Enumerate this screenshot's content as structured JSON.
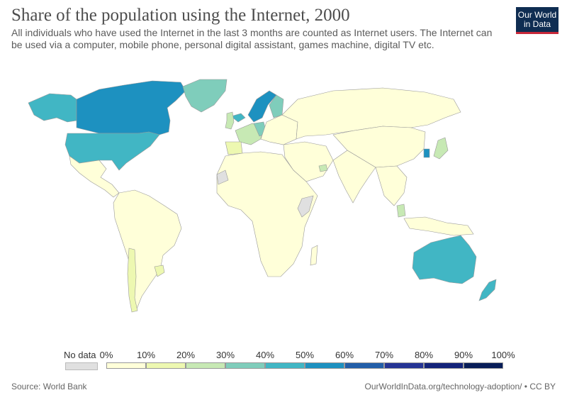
{
  "header": {
    "title": "Share of the population using the Internet, 2000",
    "subtitle": "All individuals who have used the Internet in the last 3 months are counted as Internet users. The Internet can be used via a computer, mobile phone, personal digital assistant, games machine, digital TV etc."
  },
  "logo": {
    "line1": "Our World",
    "line2": "in Data",
    "bg": "#0f2d52",
    "accent": "#c8283a"
  },
  "legend": {
    "no_data_label": "No data",
    "no_data_color": "#e0e0e0",
    "labels": [
      "0%",
      "10%",
      "20%",
      "30%",
      "40%",
      "50%",
      "60%",
      "70%",
      "80%",
      "90%",
      "100%"
    ],
    "colors": [
      "#ffffd9",
      "#edf8b1",
      "#c7e9b4",
      "#7fcdbb",
      "#41b6c4",
      "#1d91c0",
      "#225ea8",
      "#253494",
      "#13237a",
      "#081d58"
    ]
  },
  "map_data": {
    "metric": "Share of the population using the Internet",
    "year": 2000,
    "regions": [
      {
        "name": "Canada",
        "bin": "50-60%"
      },
      {
        "name": "United States",
        "bin": "40-50%"
      },
      {
        "name": "Greenland",
        "bin": "30-40%"
      },
      {
        "name": "Alaska (US)",
        "bin": "40-50%"
      },
      {
        "name": "Mexico & Central America",
        "bin": "0-10%"
      },
      {
        "name": "South America",
        "bin": "0-10%"
      },
      {
        "name": "Chile",
        "bin": "10-20%"
      },
      {
        "name": "Uruguay",
        "bin": "10-20%"
      },
      {
        "name": "Norway / Sweden",
        "bin": "50-60%"
      },
      {
        "name": "Finland",
        "bin": "30-40%"
      },
      {
        "name": "Iceland",
        "bin": "40-50%"
      },
      {
        "name": "United Kingdom",
        "bin": "20-30%"
      },
      {
        "name": "Western Europe",
        "bin": "20-30%"
      },
      {
        "name": "Germany",
        "bin": "30-40%"
      },
      {
        "name": "Spain / Portugal",
        "bin": "10-20%"
      },
      {
        "name": "Eastern Europe",
        "bin": "0-10%"
      },
      {
        "name": "Russia",
        "bin": "0-10%"
      },
      {
        "name": "Africa",
        "bin": "0-10%"
      },
      {
        "name": "Western Sahara",
        "bin": "no data"
      },
      {
        "name": "Somalia",
        "bin": "no data"
      },
      {
        "name": "Middle East",
        "bin": "0-10%"
      },
      {
        "name": "UAE",
        "bin": "20-30%"
      },
      {
        "name": "China",
        "bin": "0-10%"
      },
      {
        "name": "India",
        "bin": "0-10%"
      },
      {
        "name": "Japan",
        "bin": "20-30%"
      },
      {
        "name": "South Korea",
        "bin": "40-50%"
      },
      {
        "name": "Southeast Asia",
        "bin": "0-10%"
      },
      {
        "name": "Malaysia",
        "bin": "20-30%"
      },
      {
        "name": "Australia",
        "bin": "40-50%"
      },
      {
        "name": "New Zealand",
        "bin": "40-50%"
      }
    ]
  },
  "footer": {
    "source": "Source: World Bank",
    "url": "OurWorldInData.org/technology-adoption/ • CC BY"
  }
}
